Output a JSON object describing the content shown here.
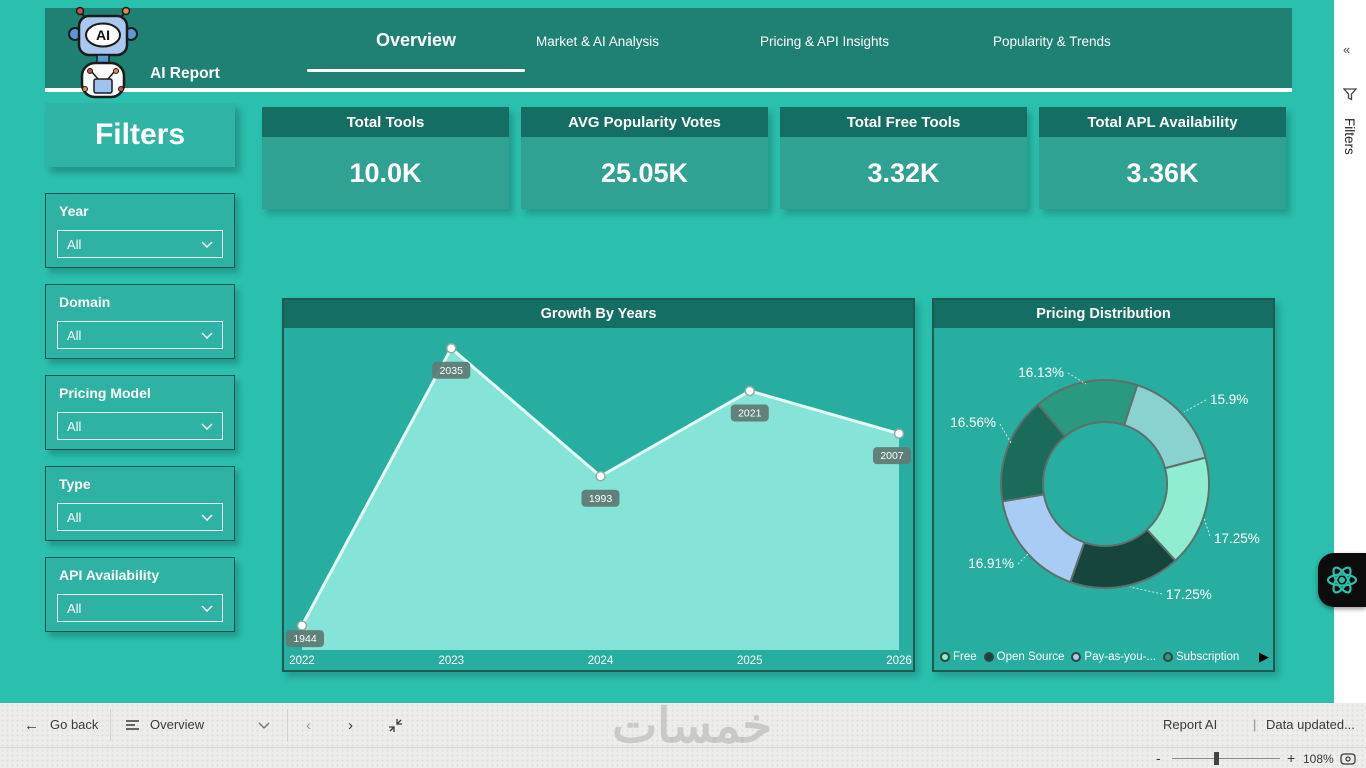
{
  "header": {
    "logo_title": "AI Report",
    "tabs": [
      {
        "label": "Overview",
        "active": true
      },
      {
        "label": "Market & AI Analysis",
        "active": false
      },
      {
        "label": "Pricing & API Insights",
        "active": false
      },
      {
        "label": "Popularity & Trends",
        "active": false
      }
    ]
  },
  "filters_panel": {
    "title": "Filters",
    "filters": [
      {
        "label": "Year",
        "value": "All"
      },
      {
        "label": "Domain",
        "value": "All"
      },
      {
        "label": "Pricing Model",
        "value": "All"
      },
      {
        "label": "Type",
        "value": "All"
      },
      {
        "label": "API Availability",
        "value": "All"
      }
    ]
  },
  "kpis": [
    {
      "title": "Total Tools",
      "value": "10.0K"
    },
    {
      "title": "AVG Popularity Votes",
      "value": "25.05K"
    },
    {
      "title": "Total Free Tools",
      "value": "3.32K"
    },
    {
      "title": "Total APL Availability",
      "value": "3.36K"
    }
  ],
  "chart_data": [
    {
      "type": "area",
      "title": "Growth By Years",
      "x": [
        "2022",
        "2023",
        "2024",
        "2025",
        "2026"
      ],
      "values": [
        1944,
        2035,
        1993,
        2021,
        2007
      ],
      "ylim": [
        1936,
        2041
      ],
      "area_color": "#8AE6DA",
      "line_color": "#E6FAF7",
      "label_bg": "#5E7C76"
    },
    {
      "type": "donut",
      "title": "Pricing Distribution",
      "start_angle_deg": -40,
      "slices": [
        {
          "label": "16.13%",
          "value": 16.13,
          "color": "#29997F"
        },
        {
          "label": "15.9%",
          "value": 15.9,
          "color": "#8AD2D0"
        },
        {
          "label": "17.25%",
          "value": 17.25,
          "color": "#90EDD1"
        },
        {
          "label": "17.25%",
          "value": 17.25,
          "color": "#15453C"
        },
        {
          "label": "16.91%",
          "value": 16.91,
          "color": "#A9CCF4"
        },
        {
          "label": "16.56%",
          "value": 16.56,
          "color": "#1A6B59"
        }
      ],
      "legend": [
        {
          "label": "Free",
          "color": "#90EDD1"
        },
        {
          "label": "Open Source",
          "color": "#15453C"
        },
        {
          "label": "Pay-as-you-...",
          "color": "#A9CCF4"
        },
        {
          "label": "Subscription",
          "color": "#29997F"
        }
      ],
      "legend_next": "▶"
    }
  ],
  "side_panel": {
    "collapse_glyph": "«",
    "title": "Filters"
  },
  "bottom_bar": {
    "back_arrow": "←",
    "go_back": "Go back",
    "page_selector": "Overview",
    "prev_glyph": "‹",
    "next_glyph": "›",
    "report_name": "Report AI",
    "status_divider": "|",
    "status": "Data updated...",
    "zoom_minus": "-",
    "zoom_plus": "+",
    "zoom_level": "108%"
  },
  "watermark": "خمسات"
}
